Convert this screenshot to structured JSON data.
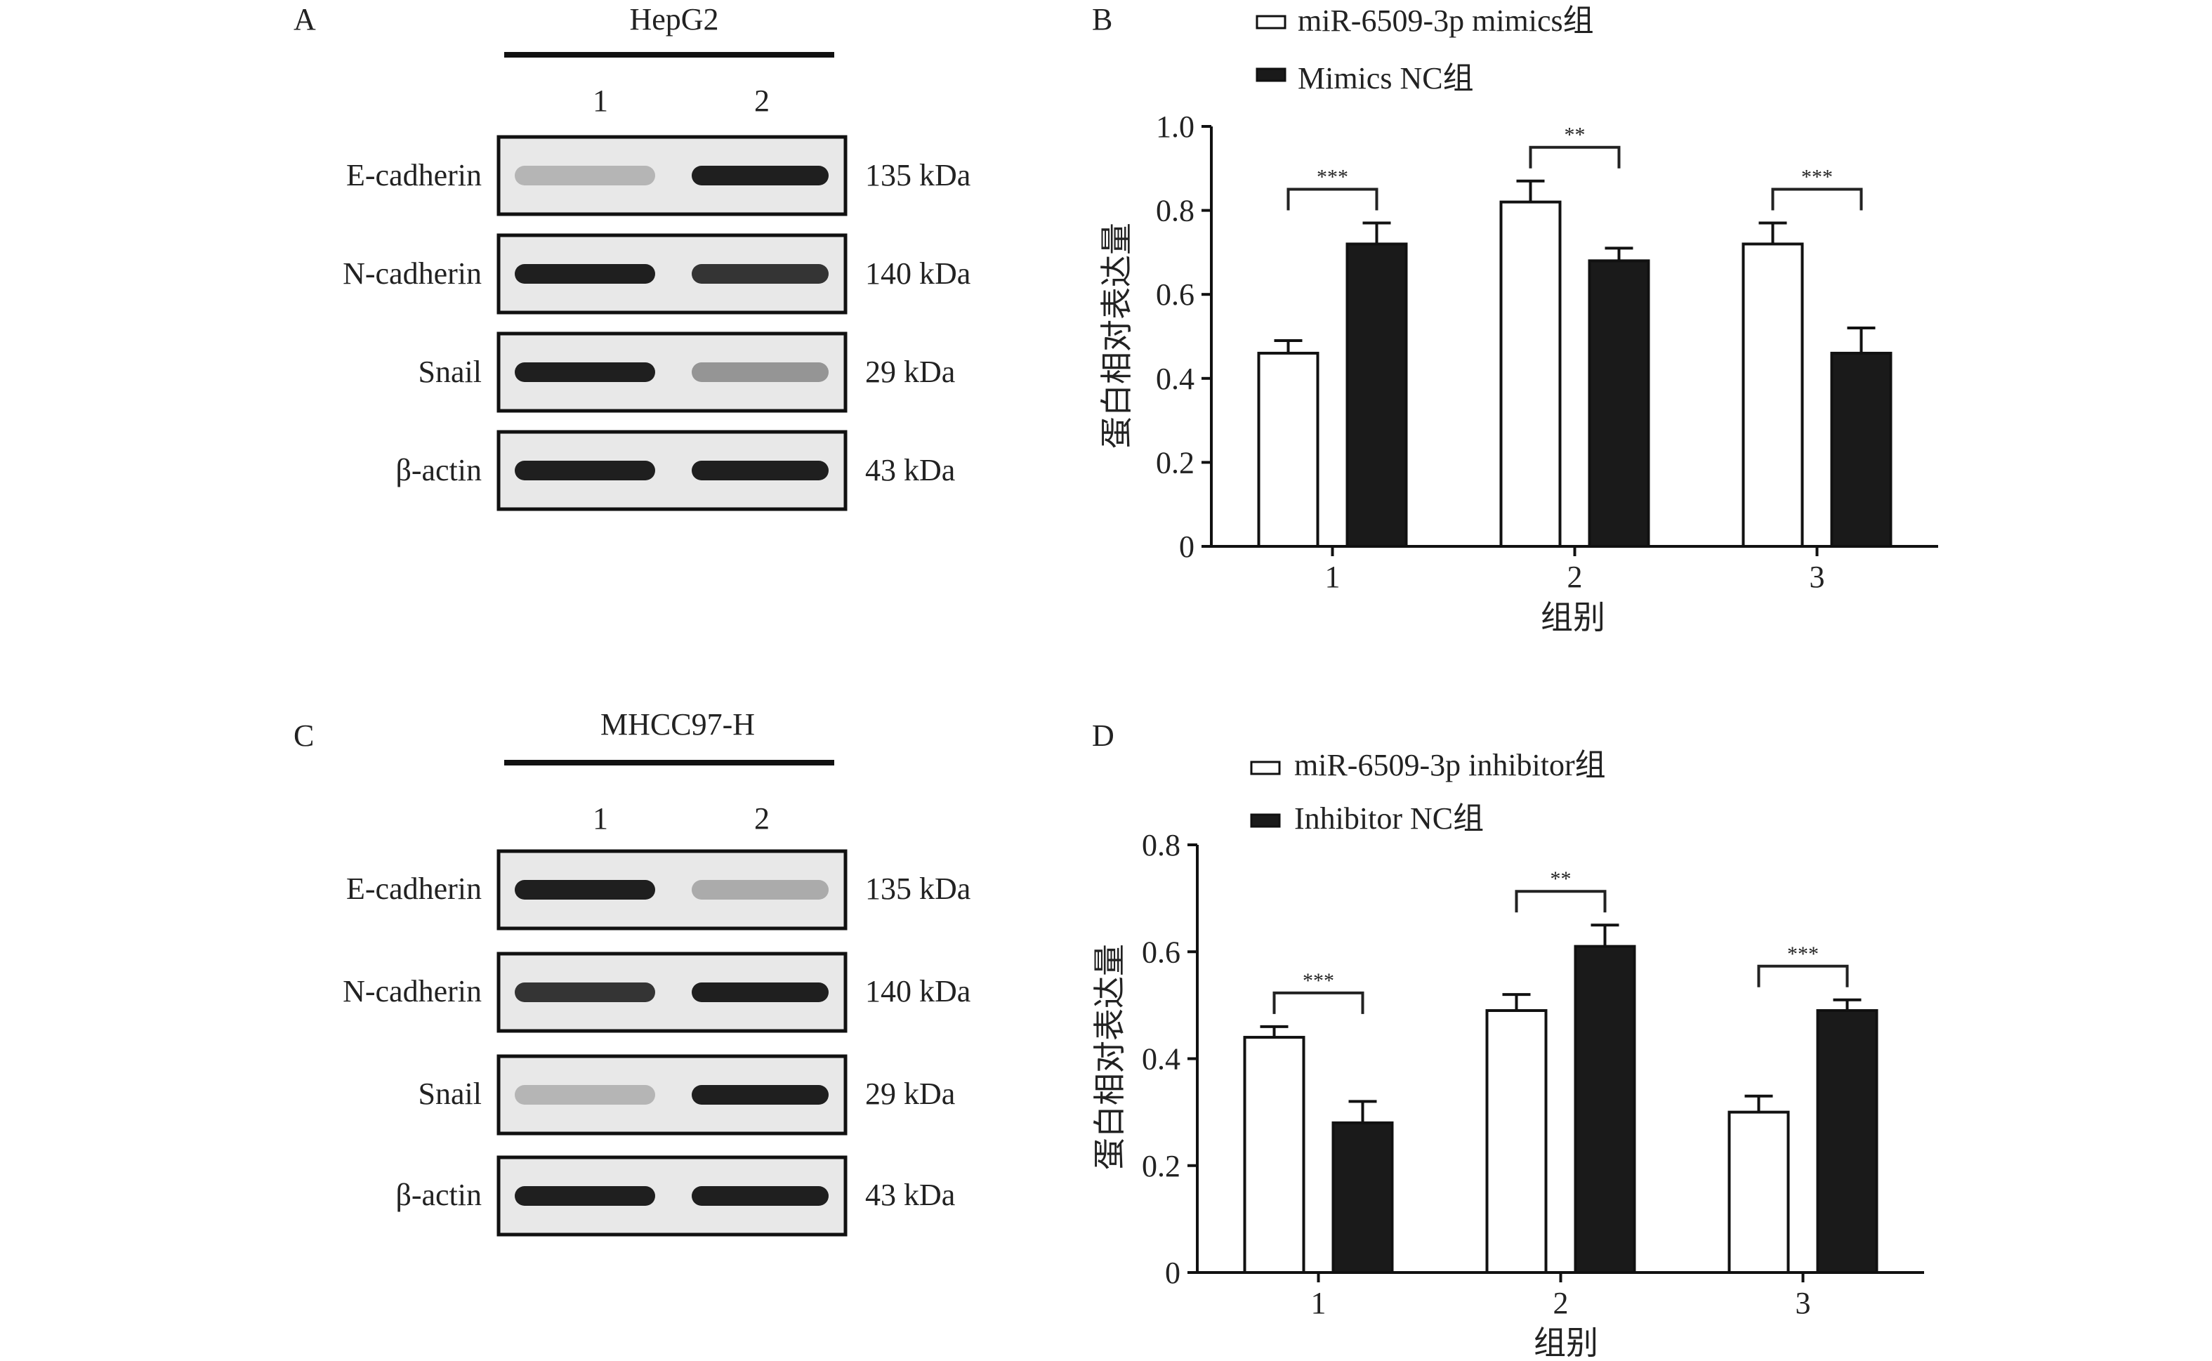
{
  "panels": {
    "A": {
      "letter": "A",
      "cell_line": "HepG2",
      "lanes": [
        "1",
        "2"
      ],
      "rows": [
        {
          "label": "E-cadherin",
          "kda": "135 kDa",
          "intensity": [
            0.25,
            0.95
          ]
        },
        {
          "label": "N-cadherin",
          "kda": "140 kDa",
          "intensity": [
            0.95,
            0.85
          ]
        },
        {
          "label": "Snail",
          "kda": "29 kDa",
          "intensity": [
            0.95,
            0.4
          ]
        },
        {
          "label": "β-actin",
          "kda": "43 kDa",
          "intensity": [
            0.95,
            0.95
          ]
        }
      ]
    },
    "C": {
      "letter": "C",
      "cell_line": "MHCC97-H",
      "lanes": [
        "1",
        "2"
      ],
      "rows": [
        {
          "label": "E-cadherin",
          "kda": "135 kDa",
          "intensity": [
            0.95,
            0.3
          ]
        },
        {
          "label": "N-cadherin",
          "kda": "140 kDa",
          "intensity": [
            0.85,
            0.95
          ]
        },
        {
          "label": "Snail",
          "kda": "29 kDa",
          "intensity": [
            0.25,
            0.95
          ]
        },
        {
          "label": "β-actin",
          "kda": "43 kDa",
          "intensity": [
            0.95,
            0.95
          ]
        }
      ]
    }
  },
  "chart_data": [
    {
      "panel": "B",
      "type": "bar",
      "categories": [
        "1",
        "2",
        "3"
      ],
      "xlabel": "组别",
      "ylabel": "蛋白相对表达量",
      "ylim": [
        0,
        1.0
      ],
      "yticks": [
        "0",
        "0.2",
        "0.4",
        "0.6",
        "0.8",
        "1.0"
      ],
      "legend_position": "top-left",
      "series": [
        {
          "name": "miR-6509-3p mimics组",
          "fill": "#ffffff",
          "values": [
            0.46,
            0.82,
            0.72
          ],
          "errors": [
            0.03,
            0.05,
            0.05
          ]
        },
        {
          "name": "Mimics NC组",
          "fill": "#1a1a1a",
          "values": [
            0.72,
            0.68,
            0.46
          ],
          "errors": [
            0.05,
            0.03,
            0.06
          ]
        }
      ],
      "significance": [
        "***",
        "**",
        "***"
      ]
    },
    {
      "panel": "D",
      "type": "bar",
      "categories": [
        "1",
        "2",
        "3"
      ],
      "xlabel": "组别",
      "ylabel": "蛋白相对表达量",
      "ylim": [
        0,
        0.8
      ],
      "yticks": [
        "0",
        "0.2",
        "0.4",
        "0.6",
        "0.8"
      ],
      "legend_position": "top-left",
      "series": [
        {
          "name": "miR-6509-3p inhibitor组",
          "fill": "#ffffff",
          "values": [
            0.44,
            0.49,
            0.3
          ],
          "errors": [
            0.02,
            0.03,
            0.03
          ]
        },
        {
          "name": "Inhibitor NC组",
          "fill": "#1a1a1a",
          "values": [
            0.28,
            0.61,
            0.49
          ],
          "errors": [
            0.04,
            0.04,
            0.02
          ]
        }
      ],
      "significance": [
        "***",
        "**",
        "***"
      ]
    }
  ]
}
